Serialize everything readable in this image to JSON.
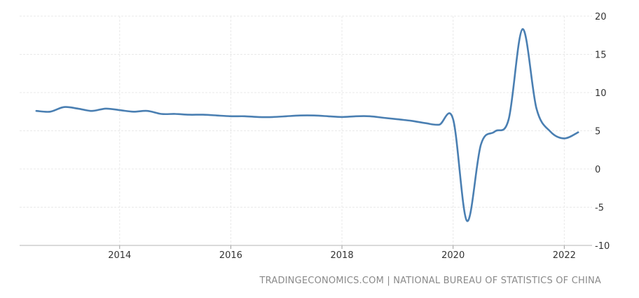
{
  "chart_data": {
    "type": "line",
    "title": "",
    "xlabel": "",
    "ylabel": "",
    "x_ticks": [
      "2014",
      "2016",
      "2018",
      "2020",
      "2022"
    ],
    "y_ticks": [
      "20",
      "15",
      "10",
      "5",
      "0",
      "-5",
      "-10"
    ],
    "xlim": [
      2012.2,
      2022.5
    ],
    "ylim": [
      -10,
      20
    ],
    "grid": true,
    "legend": "none",
    "color": "#4a7fb2",
    "series": [
      {
        "x": [
          "2012-07-01",
          "2012-10-01",
          "2013-01-01",
          "2013-04-01",
          "2013-07-01",
          "2013-10-01",
          "2014-01-01",
          "2014-04-01",
          "2014-07-01",
          "2014-10-01",
          "2015-01-01",
          "2015-04-01",
          "2015-07-01",
          "2015-10-01",
          "2016-01-01",
          "2016-04-01",
          "2016-07-01",
          "2016-10-01",
          "2017-01-01",
          "2017-04-01",
          "2017-07-01",
          "2017-10-01",
          "2018-01-01",
          "2018-04-01",
          "2018-07-01",
          "2018-10-01",
          "2019-01-01",
          "2019-04-01",
          "2019-07-01",
          "2019-10-01",
          "2020-01-01",
          "2020-04-01",
          "2020-07-01",
          "2020-10-01",
          "2021-01-01",
          "2021-04-01",
          "2021-07-01",
          "2021-10-01",
          "2022-01-01",
          "2022-04-01"
        ],
        "y": [
          7.6,
          7.5,
          8.1,
          7.9,
          7.6,
          7.9,
          7.7,
          7.5,
          7.6,
          7.2,
          7.2,
          7.1,
          7.1,
          7.0,
          6.9,
          6.9,
          6.8,
          6.8,
          6.9,
          7.0,
          7.0,
          6.9,
          6.8,
          6.9,
          6.9,
          6.7,
          6.5,
          6.3,
          6.0,
          5.8,
          6.5,
          -6.8,
          3.2,
          4.9,
          6.5,
          18.3,
          7.9,
          4.9,
          4.0,
          4.8
        ]
      }
    ]
  },
  "credit": "TRADINGECONOMICS.COM | NATIONAL BUREAU OF STATISTICS OF CHINA"
}
